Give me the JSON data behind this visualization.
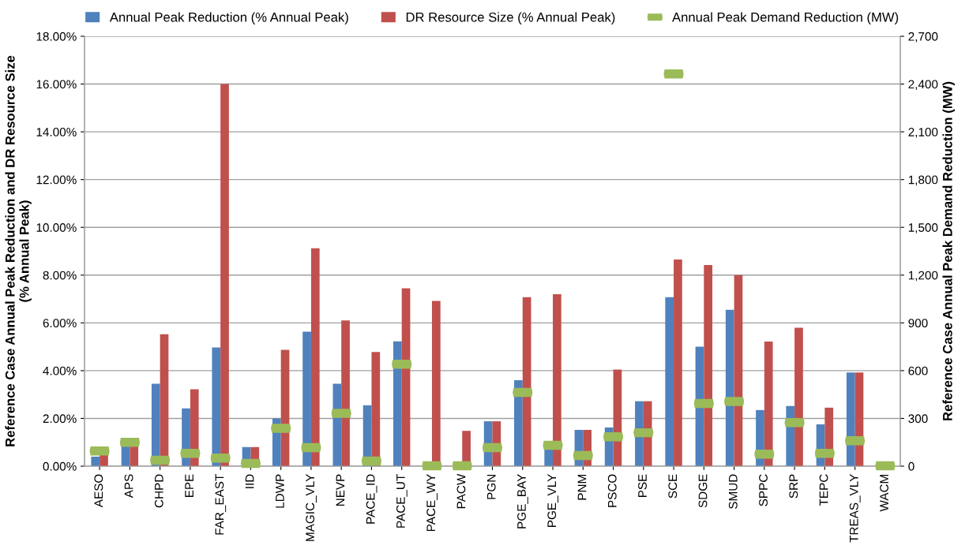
{
  "chart_data": {
    "type": "bar",
    "ylabel": "Reference Case Annual Peak Reduction and DR Resource Size\n(% Annual Peak)",
    "y2label": "Reference Case Annual Peak Demand Reduction (MW)",
    "categories": [
      "AESO",
      "APS",
      "CHPD",
      "EPE",
      "FAR_EAST",
      "IID",
      "LDWP",
      "MAGIC_VLY",
      "NEVP",
      "PACE_ID",
      "PACE_UT",
      "PACE_WY",
      "PACW",
      "PGN",
      "PGE_BAY",
      "PGE_VLY",
      "PNM",
      "PSCO",
      "PSE",
      "SCE",
      "SDGE",
      "SMUD",
      "SPPC",
      "SRP",
      "TEPC",
      "TREAS_VLY",
      "WACM"
    ],
    "series": [
      {
        "name": "Annual Peak Reduction (% Annual Peak)",
        "color": "#4f81bd",
        "values": [
          0.4,
          0.92,
          3.45,
          2.42,
          4.97,
          0.8,
          2.0,
          5.63,
          3.45,
          2.55,
          5.23,
          0,
          0,
          1.88,
          3.6,
          0.75,
          1.52,
          1.62,
          2.72,
          7.08,
          5.0,
          6.55,
          2.35,
          2.52,
          1.75,
          3.92,
          0
        ]
      },
      {
        "name": "DR Resource Size (% Annual Peak)",
        "color": "#c0504d",
        "values": [
          0.5,
          0.92,
          5.52,
          3.22,
          16.0,
          0.8,
          4.87,
          9.12,
          6.1,
          4.78,
          7.45,
          6.92,
          1.48,
          1.88,
          7.08,
          7.2,
          1.52,
          4.05,
          2.72,
          8.65,
          8.42,
          8.0,
          5.22,
          5.8,
          2.45,
          3.92,
          0
        ]
      },
      {
        "name": "Annual Peak Demand Reduction (MW)",
        "type": "scatter",
        "axis": "y2",
        "color": "#9bbb59",
        "values": [
          95,
          150,
          37,
          81,
          51,
          17,
          238,
          116,
          332,
          32,
          640,
          3,
          3,
          116,
          463,
          131,
          67,
          185,
          210,
          2463,
          394,
          406,
          76,
          274,
          81,
          160,
          3
        ]
      }
    ],
    "ylim": [
      0,
      18
    ],
    "yticks": [
      {
        "value": 0,
        "label": "0.00%"
      },
      {
        "value": 2,
        "label": "2.00%"
      },
      {
        "value": 4,
        "label": "4.00%"
      },
      {
        "value": 6,
        "label": "6.00%"
      },
      {
        "value": 8,
        "label": "8.00%"
      },
      {
        "value": 10,
        "label": "10.00%"
      },
      {
        "value": 12,
        "label": "12.00%"
      },
      {
        "value": 14,
        "label": "14.00%"
      },
      {
        "value": 16,
        "label": "16.00%"
      },
      {
        "value": 18,
        "label": "18.00%"
      }
    ],
    "y2lim": [
      0,
      2700
    ],
    "y2ticks": [
      0,
      300,
      600,
      900,
      {
        "value": 1200,
        "label": "1,200"
      },
      {
        "value": 1500,
        "label": "1,500"
      },
      {
        "value": 1800,
        "label": "1,800"
      },
      {
        "value": 2100,
        "label": "2,100"
      },
      {
        "value": 2400,
        "label": "2,400"
      },
      {
        "value": 2700,
        "label": "2,700"
      }
    ],
    "grid": "y",
    "legend": "top"
  }
}
